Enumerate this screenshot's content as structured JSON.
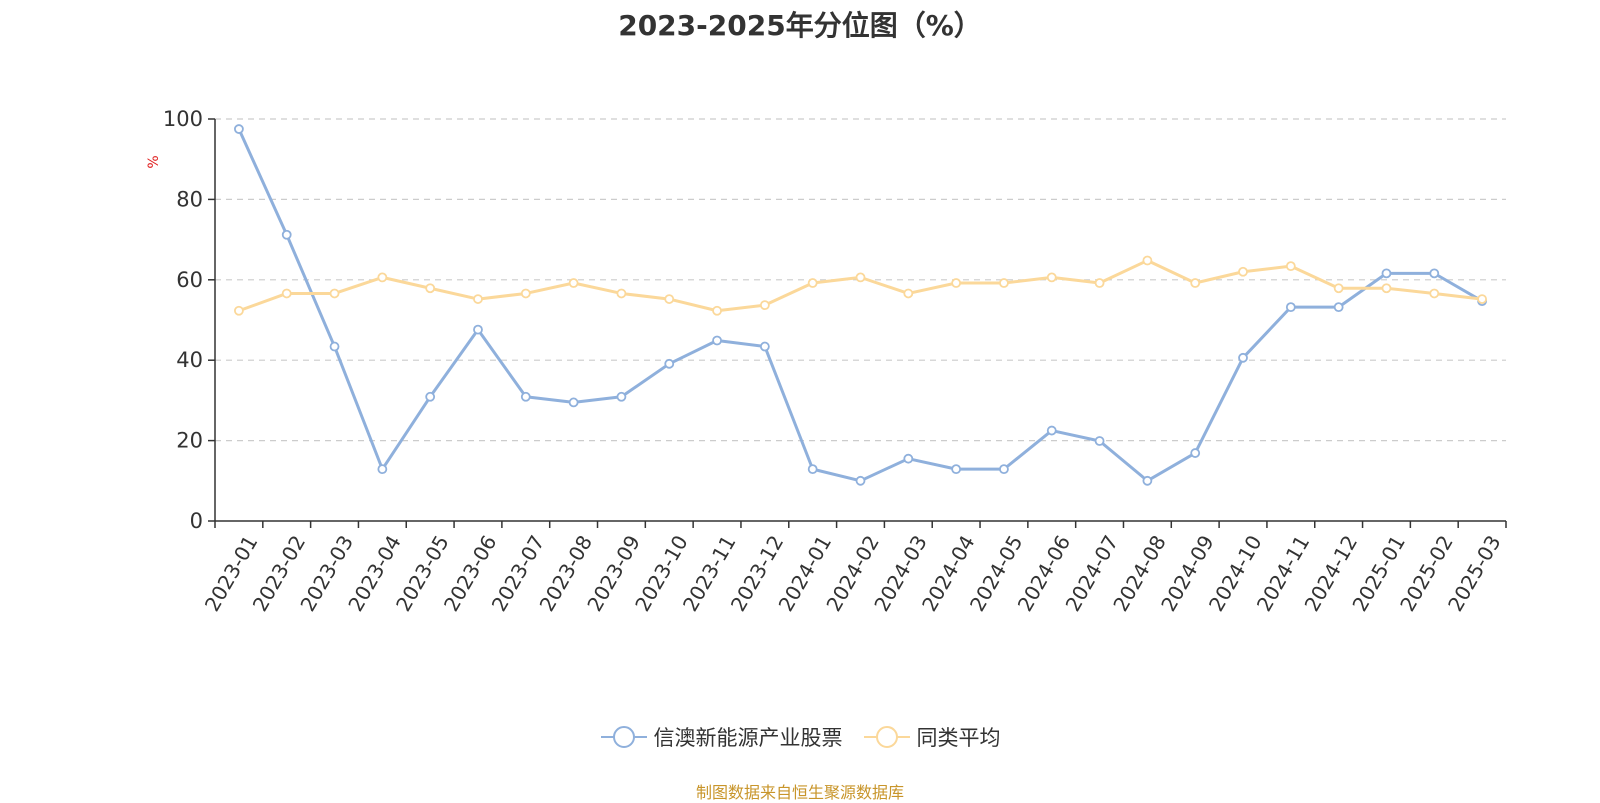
{
  "chart_data": {
    "type": "line",
    "title": "2023-2025年分位图（%）",
    "ylabel": "%",
    "xlabel": "",
    "ylim": [
      0,
      100
    ],
    "yticks": [
      0,
      20,
      40,
      60,
      80,
      100
    ],
    "grid": true,
    "legend_position": "bottom-center",
    "categories": [
      "2023-01",
      "2023-02",
      "2023-03",
      "2023-04",
      "2023-05",
      "2023-06",
      "2023-07",
      "2023-08",
      "2023-09",
      "2023-10",
      "2023-11",
      "2023-12",
      "2024-01",
      "2024-02",
      "2024-03",
      "2024-04",
      "2024-05",
      "2024-06",
      "2024-07",
      "2024-08",
      "2024-09",
      "2024-10",
      "2024-11",
      "2024-12",
      "2025-01",
      "2025-02",
      "2025-03"
    ],
    "series": [
      {
        "name": "信澳新能源产业股票",
        "color": "#8fb0dc",
        "values": [
          97.5,
          71.2,
          43.4,
          12.9,
          30.9,
          47.6,
          30.9,
          29.5,
          30.9,
          39.1,
          44.9,
          43.4,
          12.9,
          10.0,
          15.5,
          12.9,
          12.9,
          22.5,
          19.9,
          10.0,
          16.9,
          40.6,
          53.2,
          53.2,
          61.6,
          61.6,
          54.7
        ]
      },
      {
        "name": "同类平均",
        "color": "#fbd89a",
        "values": [
          52.3,
          56.6,
          56.6,
          60.6,
          57.9,
          55.2,
          56.6,
          59.2,
          56.6,
          55.2,
          52.3,
          53.7,
          59.2,
          60.6,
          56.6,
          59.2,
          59.2,
          60.6,
          59.2,
          64.8,
          59.2,
          62.0,
          63.4,
          57.9,
          57.9,
          56.6,
          55.2
        ]
      }
    ]
  },
  "source_note": "制图数据来自恒生聚源数据库"
}
